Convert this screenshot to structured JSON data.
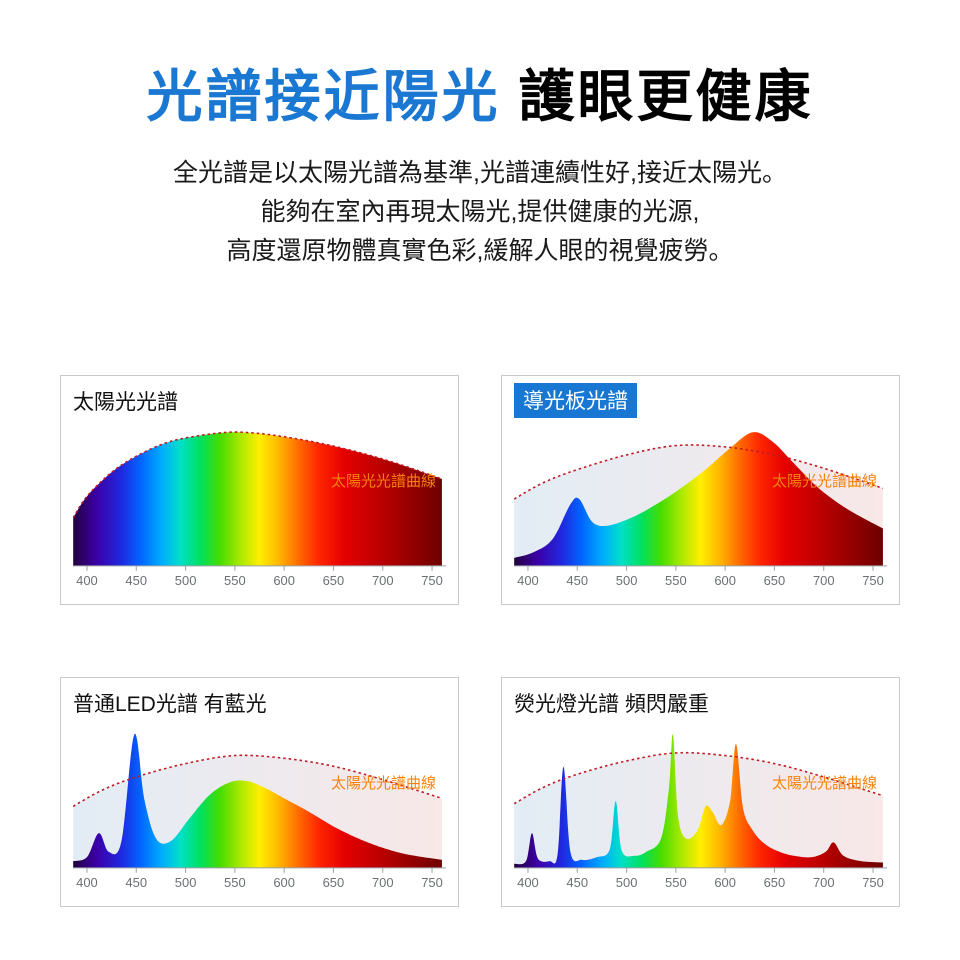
{
  "header": {
    "title_blue": "光譜接近陽光",
    "title_black": "護眼更健康",
    "lines": [
      "全光譜是以太陽光譜為基準,光譜連續性好,接近太陽光。",
      "能夠在室內再現太陽光,提供健康的光源,",
      "高度還原物體真實色彩,緩解人眼的視覺疲勞。"
    ]
  },
  "colors": {
    "title_blue": "#1a78d2",
    "chip_bg": "#1777d3",
    "label_orange": "#f7820a",
    "reference_line": "#c01a24",
    "ref_fill_left": "#cfe0ee",
    "ref_fill_right": "#f3d8d8"
  },
  "spectrum_gradient": [
    [
      386,
      "#23003d"
    ],
    [
      410,
      "#3c00a8"
    ],
    [
      435,
      "#1f2ae0"
    ],
    [
      455,
      "#0066ff"
    ],
    [
      475,
      "#00aaff"
    ],
    [
      495,
      "#00e0c8"
    ],
    [
      515,
      "#00e060"
    ],
    [
      535,
      "#45dd00"
    ],
    [
      555,
      "#a8e800"
    ],
    [
      575,
      "#ffee00"
    ],
    [
      595,
      "#ffb400"
    ],
    [
      615,
      "#ff6a00"
    ],
    [
      635,
      "#ff2600"
    ],
    [
      660,
      "#e60000"
    ],
    [
      700,
      "#b80000"
    ],
    [
      760,
      "#6e0000"
    ]
  ],
  "chart_data": [
    {
      "type": "area",
      "title": "太陽光光譜",
      "title_highlight": false,
      "curve_label": "太陽光光譜曲線",
      "x_ticks": [
        400,
        450,
        500,
        550,
        600,
        650,
        700,
        750
      ],
      "x_unit": "nm",
      "xlim": [
        386,
        760
      ],
      "ylim": [
        0,
        1
      ],
      "spectrum": [
        [
          386,
          0.36
        ],
        [
          400,
          0.52
        ],
        [
          425,
          0.7
        ],
        [
          450,
          0.82
        ],
        [
          480,
          0.92
        ],
        [
          510,
          0.97
        ],
        [
          545,
          1.0
        ],
        [
          575,
          0.99
        ],
        [
          605,
          0.96
        ],
        [
          635,
          0.92
        ],
        [
          665,
          0.87
        ],
        [
          695,
          0.81
        ],
        [
          725,
          0.74
        ],
        [
          760,
          0.65
        ]
      ],
      "reference": [
        [
          386,
          0.36
        ],
        [
          400,
          0.52
        ],
        [
          425,
          0.7
        ],
        [
          450,
          0.82
        ],
        [
          480,
          0.92
        ],
        [
          510,
          0.97
        ],
        [
          545,
          1.0
        ],
        [
          575,
          0.99
        ],
        [
          605,
          0.96
        ],
        [
          635,
          0.92
        ],
        [
          665,
          0.87
        ],
        [
          695,
          0.81
        ],
        [
          725,
          0.74
        ],
        [
          760,
          0.65
        ]
      ]
    },
    {
      "type": "area",
      "title": "導光板光譜",
      "title_highlight": true,
      "curve_label": "太陽光光譜曲線",
      "x_ticks": [
        400,
        450,
        500,
        550,
        600,
        650,
        700,
        750
      ],
      "x_unit": "nm",
      "xlim": [
        386,
        760
      ],
      "ylim": [
        0,
        1
      ],
      "spectrum": [
        [
          386,
          0.06
        ],
        [
          405,
          0.1
        ],
        [
          425,
          0.2
        ],
        [
          443,
          0.46
        ],
        [
          452,
          0.5
        ],
        [
          465,
          0.33
        ],
        [
          480,
          0.3
        ],
        [
          505,
          0.36
        ],
        [
          530,
          0.46
        ],
        [
          555,
          0.58
        ],
        [
          580,
          0.72
        ],
        [
          605,
          0.88
        ],
        [
          628,
          1.0
        ],
        [
          648,
          0.93
        ],
        [
          668,
          0.78
        ],
        [
          695,
          0.58
        ],
        [
          725,
          0.42
        ],
        [
          760,
          0.28
        ]
      ],
      "reference": [
        [
          386,
          0.5
        ],
        [
          415,
          0.62
        ],
        [
          450,
          0.72
        ],
        [
          500,
          0.83
        ],
        [
          550,
          0.9
        ],
        [
          600,
          0.89
        ],
        [
          650,
          0.83
        ],
        [
          700,
          0.73
        ],
        [
          760,
          0.58
        ]
      ]
    },
    {
      "type": "area",
      "title": "普通LED光譜 有藍光",
      "title_highlight": false,
      "curve_label": "太陽光光譜曲線",
      "x_ticks": [
        400,
        450,
        500,
        550,
        600,
        650,
        700,
        750
      ],
      "x_unit": "nm",
      "xlim": [
        386,
        760
      ],
      "ylim": [
        0,
        1
      ],
      "spectrum": [
        [
          386,
          0.05
        ],
        [
          400,
          0.08
        ],
        [
          412,
          0.26
        ],
        [
          422,
          0.12
        ],
        [
          435,
          0.2
        ],
        [
          448,
          1.0
        ],
        [
          458,
          0.52
        ],
        [
          470,
          0.22
        ],
        [
          485,
          0.2
        ],
        [
          505,
          0.38
        ],
        [
          525,
          0.55
        ],
        [
          545,
          0.64
        ],
        [
          562,
          0.65
        ],
        [
          580,
          0.6
        ],
        [
          600,
          0.52
        ],
        [
          625,
          0.42
        ],
        [
          650,
          0.31
        ],
        [
          675,
          0.22
        ],
        [
          700,
          0.15
        ],
        [
          725,
          0.1
        ],
        [
          760,
          0.06
        ]
      ],
      "reference": [
        [
          386,
          0.46
        ],
        [
          415,
          0.58
        ],
        [
          450,
          0.68
        ],
        [
          500,
          0.78
        ],
        [
          550,
          0.84
        ],
        [
          600,
          0.82
        ],
        [
          650,
          0.76
        ],
        [
          700,
          0.66
        ],
        [
          760,
          0.52
        ]
      ]
    },
    {
      "type": "area",
      "title": "熒光燈光譜 頻閃嚴重",
      "title_highlight": false,
      "curve_label": "太陽光光譜曲線",
      "x_ticks": [
        400,
        450,
        500,
        550,
        600,
        650,
        700,
        750
      ],
      "x_unit": "nm",
      "xlim": [
        386,
        760
      ],
      "ylim": [
        0,
        1
      ],
      "spectrum": [
        [
          386,
          0.03
        ],
        [
          398,
          0.05
        ],
        [
          404,
          0.26
        ],
        [
          410,
          0.07
        ],
        [
          422,
          0.05
        ],
        [
          430,
          0.1
        ],
        [
          436,
          0.76
        ],
        [
          443,
          0.12
        ],
        [
          455,
          0.06
        ],
        [
          470,
          0.08
        ],
        [
          483,
          0.14
        ],
        [
          489,
          0.5
        ],
        [
          495,
          0.13
        ],
        [
          508,
          0.09
        ],
        [
          520,
          0.12
        ],
        [
          535,
          0.22
        ],
        [
          543,
          0.6
        ],
        [
          547,
          1.0
        ],
        [
          552,
          0.4
        ],
        [
          560,
          0.22
        ],
        [
          572,
          0.28
        ],
        [
          580,
          0.46
        ],
        [
          587,
          0.42
        ],
        [
          596,
          0.32
        ],
        [
          605,
          0.5
        ],
        [
          611,
          0.93
        ],
        [
          618,
          0.45
        ],
        [
          628,
          0.28
        ],
        [
          640,
          0.18
        ],
        [
          655,
          0.12
        ],
        [
          670,
          0.09
        ],
        [
          688,
          0.08
        ],
        [
          702,
          0.12
        ],
        [
          710,
          0.19
        ],
        [
          720,
          0.09
        ],
        [
          738,
          0.05
        ],
        [
          760,
          0.04
        ]
      ],
      "reference": [
        [
          386,
          0.48
        ],
        [
          415,
          0.6
        ],
        [
          450,
          0.7
        ],
        [
          500,
          0.8
        ],
        [
          550,
          0.86
        ],
        [
          600,
          0.84
        ],
        [
          650,
          0.78
        ],
        [
          700,
          0.68
        ],
        [
          760,
          0.54
        ]
      ]
    }
  ]
}
